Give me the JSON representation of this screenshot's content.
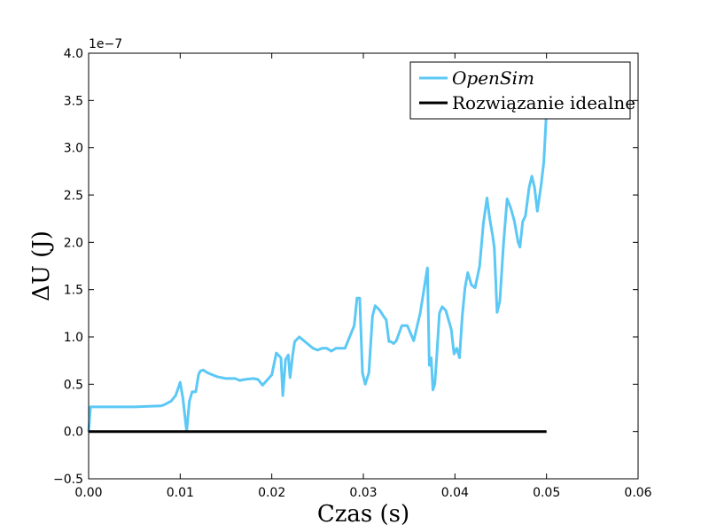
{
  "chart_data": {
    "type": "line",
    "xlabel": "Czas (s)",
    "ylabel": "ΔU (J)",
    "y_offset_label": "1e−7",
    "xlim": [
      0.0,
      0.06
    ],
    "ylim": [
      -0.5,
      4.0
    ],
    "x_ticks": [
      0.0,
      0.01,
      0.02,
      0.03,
      0.04,
      0.05,
      0.06
    ],
    "x_tick_labels": [
      "0.00",
      "0.01",
      "0.02",
      "0.03",
      "0.04",
      "0.05",
      "0.06"
    ],
    "y_ticks": [
      -0.5,
      0.0,
      0.5,
      1.0,
      1.5,
      2.0,
      2.5,
      3.0,
      3.5,
      4.0
    ],
    "y_tick_labels": [
      "−0.5",
      "0.0",
      "0.5",
      "1.0",
      "1.5",
      "2.0",
      "2.5",
      "3.0",
      "3.5",
      "4.0"
    ],
    "grid": false,
    "legend_position": "top-right",
    "series": [
      {
        "name": "OpenSim",
        "color": "#5bc8f5",
        "x": [
          0.0,
          0.0002,
          0.002,
          0.005,
          0.0075,
          0.0078,
          0.0082,
          0.009,
          0.0095,
          0.01,
          0.0103,
          0.0107,
          0.011,
          0.0113,
          0.0117,
          0.012,
          0.0122,
          0.0125,
          0.013,
          0.014,
          0.015,
          0.016,
          0.0165,
          0.017,
          0.018,
          0.0185,
          0.019,
          0.02,
          0.0205,
          0.021,
          0.0212,
          0.0215,
          0.0218,
          0.022,
          0.0223,
          0.0225,
          0.023,
          0.024,
          0.0245,
          0.025,
          0.0255,
          0.026,
          0.0265,
          0.027,
          0.028,
          0.029,
          0.0293,
          0.0296,
          0.0299,
          0.0302,
          0.0306,
          0.031,
          0.0313,
          0.0318,
          0.0322,
          0.0325,
          0.0328,
          0.033,
          0.0333,
          0.0336,
          0.0342,
          0.0348,
          0.0355,
          0.0362,
          0.0367,
          0.037,
          0.0372,
          0.0374,
          0.0376,
          0.0378,
          0.038,
          0.0383,
          0.0386,
          0.039,
          0.0393,
          0.0396,
          0.0399,
          0.0402,
          0.0405,
          0.0408,
          0.0411,
          0.0414,
          0.0418,
          0.0422,
          0.0427,
          0.0431,
          0.0435,
          0.0438,
          0.0441,
          0.0443,
          0.0446,
          0.0449,
          0.0453,
          0.0457,
          0.0461,
          0.0465,
          0.0469,
          0.0471,
          0.0474,
          0.0477,
          0.0481,
          0.0484,
          0.0487,
          0.049,
          0.0494,
          0.0497,
          0.05
        ],
        "y": [
          0.0,
          0.26,
          0.26,
          0.26,
          0.27,
          0.27,
          0.28,
          0.32,
          0.38,
          0.52,
          0.35,
          0.0,
          0.32,
          0.42,
          0.42,
          0.6,
          0.64,
          0.65,
          0.62,
          0.58,
          0.56,
          0.56,
          0.54,
          0.55,
          0.56,
          0.55,
          0.49,
          0.6,
          0.83,
          0.78,
          0.38,
          0.76,
          0.81,
          0.57,
          0.82,
          0.95,
          1.0,
          0.92,
          0.88,
          0.86,
          0.88,
          0.88,
          0.85,
          0.88,
          0.88,
          1.12,
          1.41,
          1.41,
          0.62,
          0.5,
          0.62,
          1.22,
          1.33,
          1.28,
          1.22,
          1.18,
          0.95,
          0.95,
          0.93,
          0.96,
          1.12,
          1.12,
          0.96,
          1.25,
          1.55,
          1.73,
          0.7,
          0.78,
          0.44,
          0.5,
          0.78,
          1.25,
          1.32,
          1.28,
          1.18,
          1.08,
          0.82,
          0.88,
          0.78,
          1.22,
          1.52,
          1.68,
          1.55,
          1.52,
          1.75,
          2.2,
          2.47,
          2.25,
          2.08,
          1.94,
          1.26,
          1.38,
          1.98,
          2.46,
          2.36,
          2.22,
          2.0,
          1.95,
          2.22,
          2.28,
          2.58,
          2.7,
          2.58,
          2.33,
          2.6,
          2.85,
          3.4
        ]
      },
      {
        "name": "Rozwiązanie idealne",
        "color": "#000000",
        "x": [
          0.0,
          0.05
        ],
        "y": [
          0.0,
          0.0
        ]
      }
    ]
  }
}
